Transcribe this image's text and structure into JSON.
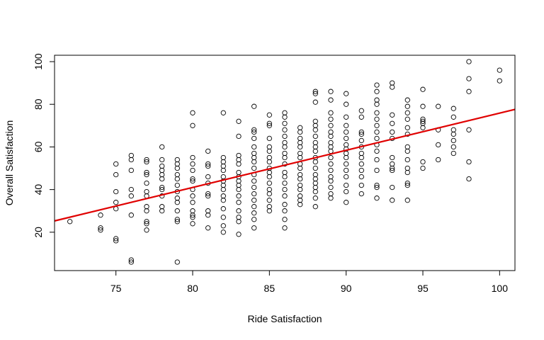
{
  "chart_data": {
    "type": "scatter",
    "title": "",
    "xlabel": "Ride Satisfaction",
    "ylabel": "Overall Satisfaction",
    "xlim": [
      71,
      101
    ],
    "ylim": [
      2,
      103
    ],
    "x_ticks": [
      75,
      80,
      85,
      90,
      95,
      100
    ],
    "y_ticks": [
      20,
      40,
      60,
      80,
      100
    ],
    "grid": false,
    "legend": "none",
    "colors": {
      "points": "#000000",
      "fit_line": "#e00000",
      "axes": "#000000"
    },
    "fit_line": {
      "x": [
        71,
        101
      ],
      "y": [
        25.3,
        77.6
      ]
    },
    "series": [
      {
        "values": [
          [
            72,
            25
          ],
          [
            74,
            28
          ],
          [
            74,
            22
          ],
          [
            74,
            21
          ],
          [
            75,
            52
          ],
          [
            75,
            47
          ],
          [
            75,
            39
          ],
          [
            75,
            34
          ],
          [
            75,
            31
          ],
          [
            75,
            17
          ],
          [
            75,
            16
          ],
          [
            76,
            56
          ],
          [
            76,
            54
          ],
          [
            76,
            49
          ],
          [
            76,
            40
          ],
          [
            76,
            37
          ],
          [
            76,
            28
          ],
          [
            76,
            7
          ],
          [
            76,
            6
          ],
          [
            77,
            54
          ],
          [
            77,
            53
          ],
          [
            77,
            48
          ],
          [
            77,
            47
          ],
          [
            77,
            43
          ],
          [
            77,
            39
          ],
          [
            77,
            37
          ],
          [
            77,
            32
          ],
          [
            77,
            30
          ],
          [
            77,
            25
          ],
          [
            77,
            24
          ],
          [
            77,
            21
          ],
          [
            78,
            60
          ],
          [
            78,
            54
          ],
          [
            78,
            51
          ],
          [
            78,
            49
          ],
          [
            78,
            47
          ],
          [
            78,
            45
          ],
          [
            78,
            41
          ],
          [
            78,
            40
          ],
          [
            78,
            37
          ],
          [
            78,
            32
          ],
          [
            78,
            30
          ],
          [
            79,
            54
          ],
          [
            79,
            52
          ],
          [
            79,
            50
          ],
          [
            79,
            47
          ],
          [
            79,
            45
          ],
          [
            79,
            42
          ],
          [
            79,
            39
          ],
          [
            79,
            36
          ],
          [
            79,
            34
          ],
          [
            79,
            30
          ],
          [
            79,
            26
          ],
          [
            79,
            25
          ],
          [
            79,
            6
          ],
          [
            80,
            76
          ],
          [
            80,
            70
          ],
          [
            80,
            55
          ],
          [
            80,
            52
          ],
          [
            80,
            49
          ],
          [
            80,
            45
          ],
          [
            80,
            44
          ],
          [
            80,
            40
          ],
          [
            80,
            37
          ],
          [
            80,
            34
          ],
          [
            80,
            30
          ],
          [
            80,
            28
          ],
          [
            80,
            27
          ],
          [
            80,
            24
          ],
          [
            81,
            58
          ],
          [
            81,
            52
          ],
          [
            81,
            51
          ],
          [
            81,
            46
          ],
          [
            81,
            43
          ],
          [
            81,
            38
          ],
          [
            81,
            37
          ],
          [
            81,
            30
          ],
          [
            81,
            28
          ],
          [
            81,
            22
          ],
          [
            82,
            76
          ],
          [
            82,
            55
          ],
          [
            82,
            53
          ],
          [
            82,
            51
          ],
          [
            82,
            49
          ],
          [
            82,
            46
          ],
          [
            82,
            44
          ],
          [
            82,
            42
          ],
          [
            82,
            40
          ],
          [
            82,
            37
          ],
          [
            82,
            35
          ],
          [
            82,
            31
          ],
          [
            82,
            27
          ],
          [
            82,
            23
          ],
          [
            82,
            20
          ],
          [
            83,
            72
          ],
          [
            83,
            65
          ],
          [
            83,
            56
          ],
          [
            83,
            54
          ],
          [
            83,
            52
          ],
          [
            83,
            48
          ],
          [
            83,
            46
          ],
          [
            83,
            44
          ],
          [
            83,
            42
          ],
          [
            83,
            40
          ],
          [
            83,
            37
          ],
          [
            83,
            34
          ],
          [
            83,
            30
          ],
          [
            83,
            27
          ],
          [
            83,
            25
          ],
          [
            83,
            19
          ],
          [
            84,
            79
          ],
          [
            84,
            68
          ],
          [
            84,
            67
          ],
          [
            84,
            64
          ],
          [
            84,
            60
          ],
          [
            84,
            57
          ],
          [
            84,
            55
          ],
          [
            84,
            53
          ],
          [
            84,
            50
          ],
          [
            84,
            47
          ],
          [
            84,
            44
          ],
          [
            84,
            41
          ],
          [
            84,
            38
          ],
          [
            84,
            35
          ],
          [
            84,
            32
          ],
          [
            84,
            29
          ],
          [
            84,
            26
          ],
          [
            84,
            22
          ],
          [
            85,
            75
          ],
          [
            85,
            71
          ],
          [
            85,
            70
          ],
          [
            85,
            64
          ],
          [
            85,
            60
          ],
          [
            85,
            58
          ],
          [
            85,
            55
          ],
          [
            85,
            53
          ],
          [
            85,
            50
          ],
          [
            85,
            48
          ],
          [
            85,
            46
          ],
          [
            85,
            43
          ],
          [
            85,
            40
          ],
          [
            85,
            38
          ],
          [
            85,
            35
          ],
          [
            85,
            32
          ],
          [
            85,
            30
          ],
          [
            86,
            76
          ],
          [
            86,
            74
          ],
          [
            86,
            71
          ],
          [
            86,
            68
          ],
          [
            86,
            65
          ],
          [
            86,
            62
          ],
          [
            86,
            60
          ],
          [
            86,
            57
          ],
          [
            86,
            55
          ],
          [
            86,
            52
          ],
          [
            86,
            48
          ],
          [
            86,
            46
          ],
          [
            86,
            43
          ],
          [
            86,
            40
          ],
          [
            86,
            37
          ],
          [
            86,
            33
          ],
          [
            86,
            30
          ],
          [
            86,
            26
          ],
          [
            86,
            22
          ],
          [
            87,
            69
          ],
          [
            87,
            67
          ],
          [
            87,
            64
          ],
          [
            87,
            62
          ],
          [
            87,
            60
          ],
          [
            87,
            57
          ],
          [
            87,
            55
          ],
          [
            87,
            52
          ],
          [
            87,
            50
          ],
          [
            87,
            47
          ],
          [
            87,
            45
          ],
          [
            87,
            42
          ],
          [
            87,
            40
          ],
          [
            87,
            37
          ],
          [
            87,
            35
          ],
          [
            87,
            33
          ],
          [
            88,
            86
          ],
          [
            88,
            85
          ],
          [
            88,
            81
          ],
          [
            88,
            72
          ],
          [
            88,
            70
          ],
          [
            88,
            68
          ],
          [
            88,
            65
          ],
          [
            88,
            62
          ],
          [
            88,
            60
          ],
          [
            88,
            58
          ],
          [
            88,
            55
          ],
          [
            88,
            53
          ],
          [
            88,
            50
          ],
          [
            88,
            47
          ],
          [
            88,
            45
          ],
          [
            88,
            43
          ],
          [
            88,
            41
          ],
          [
            88,
            39
          ],
          [
            88,
            36
          ],
          [
            88,
            32
          ],
          [
            89,
            86
          ],
          [
            89,
            82
          ],
          [
            89,
            76
          ],
          [
            89,
            73
          ],
          [
            89,
            70
          ],
          [
            89,
            67
          ],
          [
            89,
            65
          ],
          [
            89,
            62
          ],
          [
            89,
            60
          ],
          [
            89,
            58
          ],
          [
            89,
            55
          ],
          [
            89,
            52
          ],
          [
            89,
            49
          ],
          [
            89,
            46
          ],
          [
            89,
            44
          ],
          [
            89,
            41
          ],
          [
            89,
            38
          ],
          [
            89,
            36
          ],
          [
            90,
            85
          ],
          [
            90,
            80
          ],
          [
            90,
            74
          ],
          [
            90,
            70
          ],
          [
            90,
            67
          ],
          [
            90,
            64
          ],
          [
            90,
            61
          ],
          [
            90,
            59
          ],
          [
            90,
            57
          ],
          [
            90,
            55
          ],
          [
            90,
            52
          ],
          [
            90,
            49
          ],
          [
            90,
            46
          ],
          [
            90,
            42
          ],
          [
            90,
            39
          ],
          [
            90,
            34
          ],
          [
            91,
            77
          ],
          [
            91,
            74
          ],
          [
            91,
            67
          ],
          [
            91,
            66
          ],
          [
            91,
            63
          ],
          [
            91,
            60
          ],
          [
            91,
            57
          ],
          [
            91,
            55
          ],
          [
            91,
            52
          ],
          [
            91,
            49
          ],
          [
            91,
            46
          ],
          [
            91,
            42
          ],
          [
            91,
            38
          ],
          [
            92,
            89
          ],
          [
            92,
            86
          ],
          [
            92,
            82
          ],
          [
            92,
            80
          ],
          [
            92,
            76
          ],
          [
            92,
            73
          ],
          [
            92,
            70
          ],
          [
            92,
            67
          ],
          [
            92,
            64
          ],
          [
            92,
            61
          ],
          [
            92,
            58
          ],
          [
            92,
            54
          ],
          [
            92,
            49
          ],
          [
            92,
            42
          ],
          [
            92,
            41
          ],
          [
            92,
            36
          ],
          [
            93,
            90
          ],
          [
            93,
            88
          ],
          [
            93,
            75
          ],
          [
            93,
            71
          ],
          [
            93,
            67
          ],
          [
            93,
            64
          ],
          [
            93,
            55
          ],
          [
            93,
            52
          ],
          [
            93,
            50
          ],
          [
            93,
            49
          ],
          [
            93,
            41
          ],
          [
            93,
            35
          ],
          [
            94,
            82
          ],
          [
            94,
            79
          ],
          [
            94,
            76
          ],
          [
            94,
            73
          ],
          [
            94,
            69
          ],
          [
            94,
            66
          ],
          [
            94,
            60
          ],
          [
            94,
            58
          ],
          [
            94,
            54
          ],
          [
            94,
            50
          ],
          [
            94,
            48
          ],
          [
            94,
            43
          ],
          [
            94,
            42
          ],
          [
            94,
            35
          ],
          [
            95,
            87
          ],
          [
            95,
            79
          ],
          [
            95,
            73
          ],
          [
            95,
            72
          ],
          [
            95,
            71
          ],
          [
            95,
            69
          ],
          [
            95,
            53
          ],
          [
            95,
            50
          ],
          [
            96,
            79
          ],
          [
            96,
            68
          ],
          [
            96,
            61
          ],
          [
            96,
            54
          ],
          [
            97,
            78
          ],
          [
            97,
            74
          ],
          [
            97,
            68
          ],
          [
            97,
            66
          ],
          [
            97,
            63
          ],
          [
            97,
            60
          ],
          [
            97,
            57
          ],
          [
            98,
            100
          ],
          [
            98,
            92
          ],
          [
            98,
            86
          ],
          [
            98,
            68
          ],
          [
            98,
            53
          ],
          [
            98,
            45
          ],
          [
            100,
            96
          ],
          [
            100,
            91
          ]
        ]
      }
    ]
  }
}
